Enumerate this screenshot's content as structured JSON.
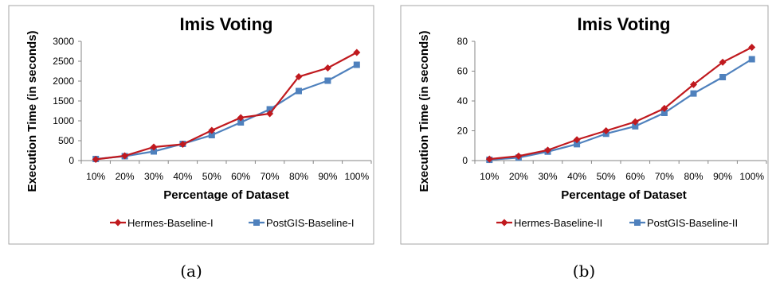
{
  "chart_data": [
    {
      "type": "line",
      "title": "Imis Voting",
      "xlabel": "Percentage of Dataset",
      "ylabel": "Execution Time (in seconds)",
      "categories": [
        "10%",
        "20%",
        "30%",
        "40%",
        "50%",
        "60%",
        "70%",
        "80%",
        "90%",
        "100%"
      ],
      "ylim": [
        0,
        3000
      ],
      "yticks": [
        0,
        500,
        1000,
        1500,
        2000,
        2500,
        3000
      ],
      "legend_position": "bottom",
      "grid": false,
      "caption": "(a)",
      "series": [
        {
          "name": "Hermes-Baseline-I",
          "color": "#c0191e",
          "marker": "diamond",
          "values": [
            30,
            120,
            340,
            410,
            760,
            1080,
            1180,
            2110,
            2330,
            2720
          ]
        },
        {
          "name": "PostGIS-Baseline-I",
          "color": "#4f81bd",
          "marker": "square",
          "values": [
            40,
            110,
            230,
            420,
            640,
            960,
            1290,
            1750,
            2010,
            2410
          ]
        }
      ]
    },
    {
      "type": "line",
      "title": "Imis Voting",
      "xlabel": "Percentage of Dataset",
      "ylabel": "Execution Time (in seconds)",
      "categories": [
        "10%",
        "20%",
        "30%",
        "40%",
        "50%",
        "60%",
        "70%",
        "80%",
        "90%",
        "100%"
      ],
      "ylim": [
        0,
        80
      ],
      "yticks": [
        0,
        20,
        40,
        60,
        80
      ],
      "legend_position": "bottom",
      "grid": false,
      "caption": "(b)",
      "series": [
        {
          "name": "Hermes-Baseline-II",
          "color": "#c0191e",
          "marker": "diamond",
          "values": [
            1,
            3,
            7,
            14,
            20,
            26,
            35,
            51,
            66,
            76
          ]
        },
        {
          "name": "PostGIS-Baseline-II",
          "color": "#4f81bd",
          "marker": "square",
          "values": [
            0.5,
            2,
            6,
            11,
            18,
            23,
            32,
            45,
            56,
            68
          ]
        }
      ]
    }
  ]
}
